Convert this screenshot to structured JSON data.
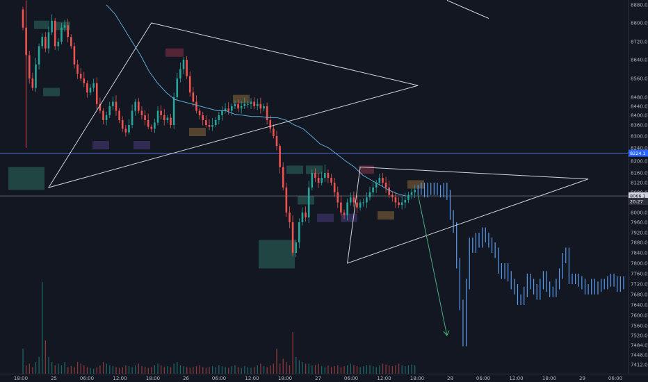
{
  "chart_data": {
    "type": "candlestick",
    "title": "",
    "xlabel": "",
    "ylabel": "",
    "ylim": [
      7400,
      8900
    ],
    "y_scale": "log",
    "grid": false,
    "colors": {
      "background": "#131722",
      "up": "#26a69a",
      "down": "#ef5350",
      "projection": "#5b9cf0",
      "moving_average": "#5da9d6",
      "pattern_lines": "#d1d4dc",
      "horizontal_line": "#4a6fd1",
      "current_price_line": "#6b6f7a",
      "projection_arrow": "#4caf7d",
      "axis_text": "#b2b5be"
    },
    "y_ticks": [
      "8880.0",
      "8800.0",
      "8720.0",
      "8640.0",
      "8560.0",
      "8480.0",
      "8440.0",
      "8400.0",
      "8360.0",
      "8300.0",
      "8240.0",
      "8200.0",
      "8160.0",
      "8120.0",
      "8080.0",
      "8000.0",
      "7960.0",
      "7920.0",
      "7880.0",
      "7840.0",
      "7800.0",
      "7760.0",
      "7720.0",
      "7680.0",
      "7640.0",
      "7600.0",
      "7560.0",
      "7520.0",
      "7484.0",
      "7448.0",
      "7412.0"
    ],
    "x_ticks": [
      "18:00",
      "25",
      "06:00",
      "12:00",
      "18:00",
      "26",
      "06:00",
      "12:00",
      "18:00",
      "27",
      "06:00",
      "12:00",
      "18:00",
      "28",
      "06:00",
      "12:00",
      "18:00",
      "29",
      "06:00"
    ],
    "price_tags": [
      {
        "label": "8224.1",
        "value": 8224.1
      },
      {
        "label": "8066.1",
        "value": 8066.1
      },
      {
        "label": "20:27",
        "value": 8055
      }
    ],
    "horizontal_line": 8224.1,
    "current_price": 8066.1,
    "series": [
      {
        "kind": "ohlc",
        "start_bar": 0,
        "close": [
          8780,
          8660,
          8560,
          8520,
          8620,
          8700,
          8740,
          8690,
          8760,
          8810,
          8700,
          8720,
          8780,
          8790,
          8740,
          8700,
          8620,
          8580,
          8560,
          8540,
          8500,
          8520,
          8540,
          8450,
          8420,
          8380,
          8400,
          8440,
          8460,
          8420,
          8380,
          8340,
          8320,
          8360,
          8420,
          8460,
          8420,
          8400,
          8380,
          8350,
          8340,
          8370,
          8420,
          8400,
          8380,
          8390,
          8360,
          8480,
          8560,
          8600,
          8640,
          8570,
          8500,
          8460,
          8420,
          8400,
          8380,
          8360,
          8350,
          8360,
          8380,
          8400,
          8420,
          8430,
          8420,
          8440,
          8450,
          8430,
          8440,
          8450,
          8450,
          8460,
          8440,
          8450,
          8430,
          8440,
          8380,
          8340,
          8300,
          8250,
          8180,
          8100,
          8000,
          7960,
          7840,
          7880,
          7960,
          8000,
          7980,
          8100,
          8160,
          8140,
          8120,
          8140,
          8160,
          8140,
          8120,
          8080,
          8040,
          8000,
          7990,
          8040,
          8060,
          8040,
          8020,
          8040,
          8040,
          8060,
          8080,
          8100,
          8120,
          8140,
          8120,
          8100,
          8070,
          8060,
          8040,
          8030,
          8040,
          8050,
          8070,
          8080,
          8090
        ]
      },
      {
        "kind": "projection",
        "start_bar": 123,
        "close": [
          8090,
          8100,
          8080,
          8100,
          8090,
          8100,
          8090,
          8080,
          8100,
          8070,
          7990,
          7940,
          7800,
          7640,
          7500,
          7720,
          7880,
          7860,
          7900,
          7880,
          7920,
          7900,
          7880,
          7860,
          7840,
          7780,
          7760,
          7780,
          7750,
          7720,
          7700,
          7660,
          7660,
          7690,
          7740,
          7720,
          7700,
          7680,
          7720,
          7750,
          7710,
          7690,
          7690,
          7720,
          7760,
          7820,
          7840,
          7740,
          7740,
          7740,
          7730,
          7720,
          7700,
          7700,
          7720,
          7700,
          7710,
          7720,
          7720,
          7730,
          7740,
          7730,
          7710,
          7730,
          7720
        ]
      }
    ],
    "moving_average": [
      8880,
      8840,
      8780,
      8720,
      8660,
      8590,
      8540,
      8500,
      8470,
      8460,
      8450,
      8440,
      8430,
      8420,
      8420,
      8405,
      8400,
      8395,
      8395,
      8390,
      8390,
      8380,
      8360,
      8340,
      8300,
      8260,
      8240,
      8220,
      8200,
      8180,
      8150,
      8130,
      8110,
      8090,
      8075,
      8066
    ],
    "volume": [
      30,
      10,
      12,
      8,
      14,
      20,
      110,
      40,
      20,
      14,
      10,
      12,
      10,
      14,
      8,
      9,
      8,
      14,
      12,
      10,
      8,
      7,
      6,
      8,
      10,
      14,
      12,
      10,
      9,
      8,
      7,
      8,
      10,
      9,
      8,
      10,
      12,
      9,
      8,
      7,
      8,
      10,
      12,
      10,
      8,
      9,
      8,
      12,
      14,
      10,
      9,
      8,
      7,
      8,
      9,
      10,
      8,
      7,
      8,
      9,
      8,
      10,
      9,
      8,
      7,
      9,
      10,
      8,
      7,
      9,
      8,
      7,
      8,
      10,
      12,
      9,
      8,
      10,
      12,
      30,
      12,
      18,
      14,
      10,
      50,
      20,
      16,
      14,
      12,
      12,
      10,
      10,
      12,
      9,
      8,
      10,
      8,
      9,
      10,
      8,
      9,
      10,
      12,
      10,
      9,
      8,
      9,
      10,
      10,
      9,
      8,
      10,
      12,
      11,
      10,
      9,
      10,
      12,
      10,
      9,
      10,
      11,
      10
    ],
    "annotations": [
      {
        "shape": "triangle",
        "points": [
          [
            8,
            8100
          ],
          [
            40,
            8800
          ],
          [
            123,
            8530
          ]
        ]
      },
      {
        "shape": "triangle",
        "points": [
          [
            101,
            7800
          ],
          [
            105,
            8180
          ],
          [
            176,
            8135
          ]
        ]
      },
      {
        "shape": "line",
        "points": [
          [
            123,
            8070
          ],
          [
            132,
            7520
          ]
        ],
        "color": "projection_arrow"
      },
      {
        "shape": "line",
        "points": [
          [
            132,
            8900
          ],
          [
            145,
            8820
          ]
        ]
      }
    ]
  }
}
